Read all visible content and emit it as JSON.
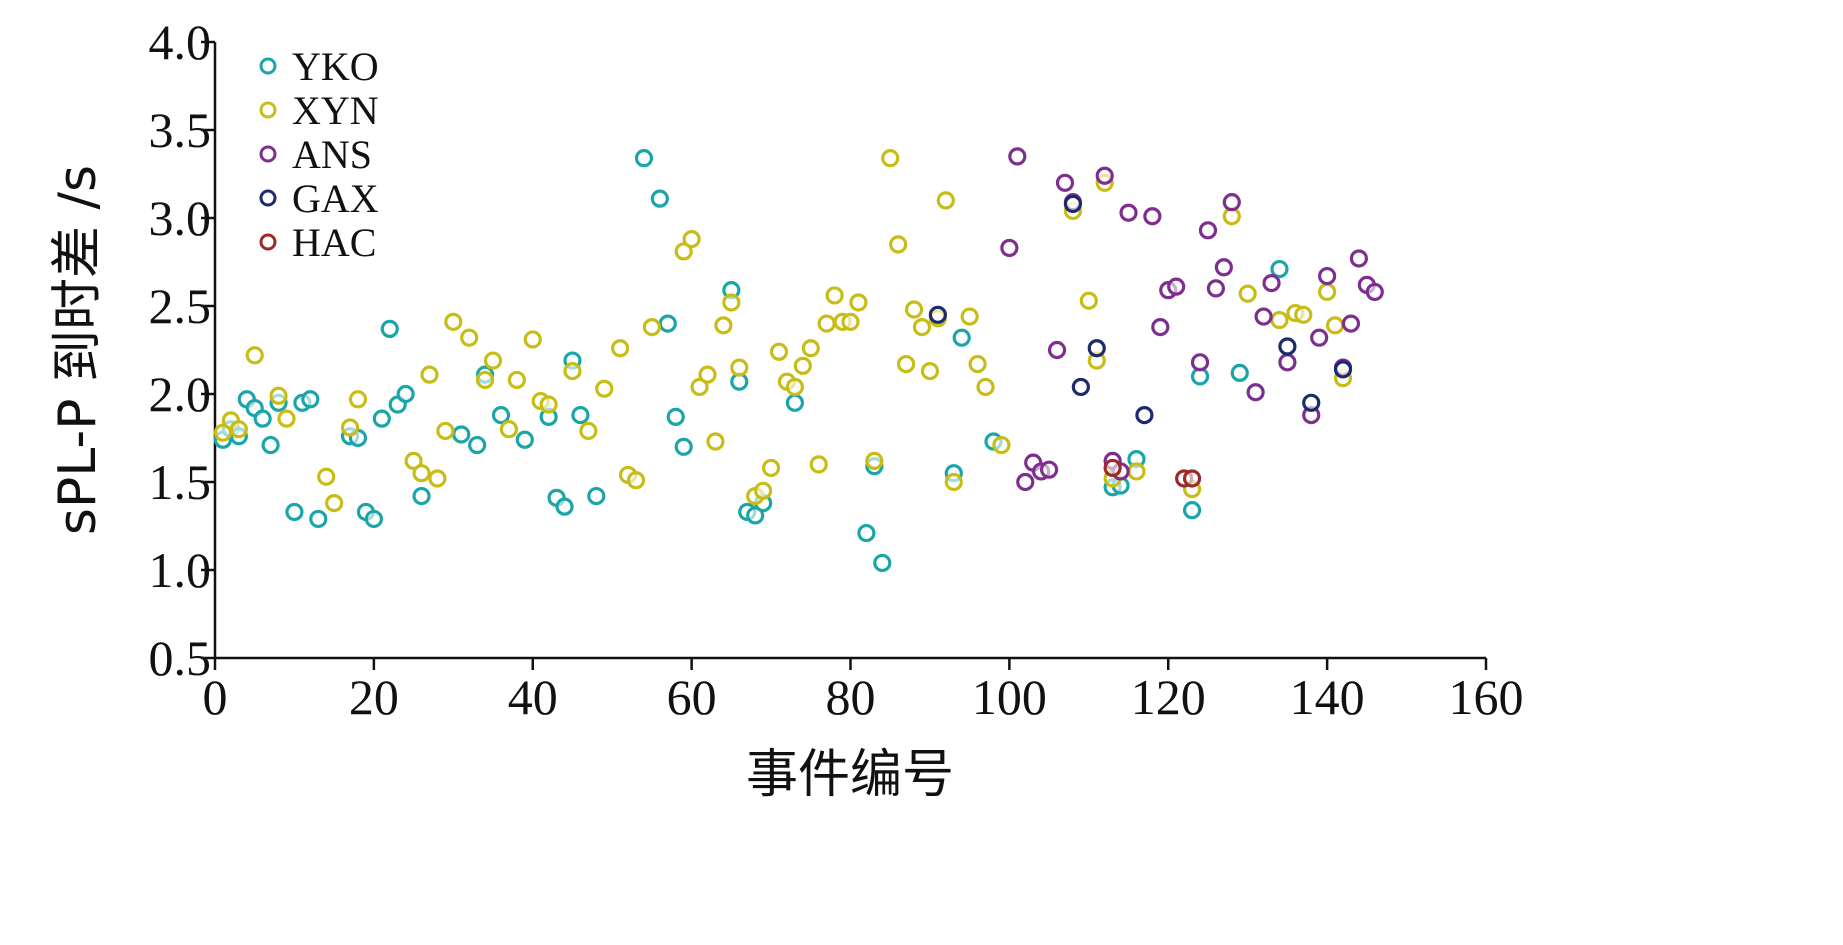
{
  "chart_data": {
    "type": "scatter",
    "xlabel": "事件编号",
    "ylabel": "sPL-P 到时差 /s",
    "xlim": [
      0,
      160
    ],
    "ylim": [
      0.5,
      4.0
    ],
    "x_ticks": [
      "0",
      "20",
      "40",
      "60",
      "80",
      "100",
      "120",
      "140",
      "160"
    ],
    "y_ticks": [
      "0.5",
      "1.0",
      "1.5",
      "2.0",
      "2.5",
      "3.0",
      "3.5",
      "4.0"
    ],
    "grid": false,
    "legend_position": "top-left",
    "series": [
      {
        "name": "YKO",
        "color": "#1aa6a8",
        "points": [
          [
            1,
            1.74
          ],
          [
            2,
            1.8
          ],
          [
            3,
            1.76
          ],
          [
            4,
            1.97
          ],
          [
            5,
            1.92
          ],
          [
            6,
            1.86
          ],
          [
            7,
            1.71
          ],
          [
            8,
            1.95
          ],
          [
            10,
            1.33
          ],
          [
            11,
            1.95
          ],
          [
            12,
            1.97
          ],
          [
            13,
            1.29
          ],
          [
            17,
            1.76
          ],
          [
            18,
            1.75
          ],
          [
            19,
            1.33
          ],
          [
            20,
            1.29
          ],
          [
            21,
            1.86
          ],
          [
            22,
            2.37
          ],
          [
            23,
            1.94
          ],
          [
            24,
            2.0
          ],
          [
            26,
            1.42
          ],
          [
            31,
            1.77
          ],
          [
            33,
            1.71
          ],
          [
            34,
            2.11
          ],
          [
            36,
            1.88
          ],
          [
            39,
            1.74
          ],
          [
            42,
            1.87
          ],
          [
            43,
            1.41
          ],
          [
            44,
            1.36
          ],
          [
            45,
            2.19
          ],
          [
            46,
            1.88
          ],
          [
            48,
            1.42
          ],
          [
            54,
            3.34
          ],
          [
            56,
            3.11
          ],
          [
            57,
            2.4
          ],
          [
            58,
            1.87
          ],
          [
            59,
            1.7
          ],
          [
            65,
            2.59
          ],
          [
            66,
            2.07
          ],
          [
            67,
            1.33
          ],
          [
            68,
            1.31
          ],
          [
            69,
            1.38
          ],
          [
            73,
            1.95
          ],
          [
            82,
            1.21
          ],
          [
            83,
            1.59
          ],
          [
            84,
            1.04
          ],
          [
            93,
            1.55
          ],
          [
            94,
            2.32
          ],
          [
            98,
            1.73
          ],
          [
            113,
            1.47
          ],
          [
            114,
            1.48
          ],
          [
            116,
            1.63
          ],
          [
            123,
            1.34
          ],
          [
            124,
            2.1
          ],
          [
            129,
            2.12
          ],
          [
            134,
            2.71
          ]
        ]
      },
      {
        "name": "XYN",
        "color": "#c8bd16",
        "points": [
          [
            1,
            1.78
          ],
          [
            2,
            1.85
          ],
          [
            3,
            1.8
          ],
          [
            5,
            2.22
          ],
          [
            8,
            1.99
          ],
          [
            9,
            1.86
          ],
          [
            14,
            1.53
          ],
          [
            15,
            1.38
          ],
          [
            17,
            1.81
          ],
          [
            18,
            1.97
          ],
          [
            25,
            1.62
          ],
          [
            26,
            1.55
          ],
          [
            27,
            2.11
          ],
          [
            28,
            1.52
          ],
          [
            29,
            1.79
          ],
          [
            30,
            2.41
          ],
          [
            32,
            2.32
          ],
          [
            34,
            2.08
          ],
          [
            35,
            2.19
          ],
          [
            37,
            1.8
          ],
          [
            38,
            2.08
          ],
          [
            40,
            2.31
          ],
          [
            41,
            1.96
          ],
          [
            42,
            1.94
          ],
          [
            45,
            2.13
          ],
          [
            47,
            1.79
          ],
          [
            49,
            2.03
          ],
          [
            51,
            2.26
          ],
          [
            52,
            1.54
          ],
          [
            53,
            1.51
          ],
          [
            55,
            2.38
          ],
          [
            59,
            2.81
          ],
          [
            60,
            2.88
          ],
          [
            61,
            2.04
          ],
          [
            62,
            2.11
          ],
          [
            63,
            1.73
          ],
          [
            64,
            2.39
          ],
          [
            65,
            2.52
          ],
          [
            66,
            2.15
          ],
          [
            68,
            1.42
          ],
          [
            69,
            1.45
          ],
          [
            70,
            1.58
          ],
          [
            71,
            2.24
          ],
          [
            72,
            2.07
          ],
          [
            73,
            2.04
          ],
          [
            74,
            2.16
          ],
          [
            75,
            2.26
          ],
          [
            76,
            1.6
          ],
          [
            77,
            2.4
          ],
          [
            78,
            2.56
          ],
          [
            79,
            2.41
          ],
          [
            80,
            2.41
          ],
          [
            81,
            2.52
          ],
          [
            83,
            1.62
          ],
          [
            85,
            3.34
          ],
          [
            86,
            2.85
          ],
          [
            87,
            2.17
          ],
          [
            88,
            2.48
          ],
          [
            89,
            2.38
          ],
          [
            90,
            2.13
          ],
          [
            91,
            2.43
          ],
          [
            92,
            3.1
          ],
          [
            93,
            1.5
          ],
          [
            95,
            2.44
          ],
          [
            96,
            2.17
          ],
          [
            97,
            2.04
          ],
          [
            99,
            1.71
          ],
          [
            108,
            3.04
          ],
          [
            110,
            2.53
          ],
          [
            111,
            2.19
          ],
          [
            112,
            3.2
          ],
          [
            113,
            1.52
          ],
          [
            116,
            1.56
          ],
          [
            123,
            1.46
          ],
          [
            128,
            3.01
          ],
          [
            130,
            2.57
          ],
          [
            134,
            2.42
          ],
          [
            136,
            2.46
          ],
          [
            137,
            2.45
          ],
          [
            140,
            2.58
          ],
          [
            141,
            2.39
          ],
          [
            142,
            2.09
          ]
        ]
      },
      {
        "name": "ANS",
        "color": "#7e2e8e",
        "points": [
          [
            100,
            2.83
          ],
          [
            101,
            3.35
          ],
          [
            102,
            1.5
          ],
          [
            103,
            1.61
          ],
          [
            104,
            1.56
          ],
          [
            105,
            1.57
          ],
          [
            106,
            2.25
          ],
          [
            107,
            3.2
          ],
          [
            108,
            3.09
          ],
          [
            112,
            3.24
          ],
          [
            113,
            1.62
          ],
          [
            114,
            1.56
          ],
          [
            115,
            3.03
          ],
          [
            118,
            3.01
          ],
          [
            119,
            2.38
          ],
          [
            120,
            2.59
          ],
          [
            121,
            2.61
          ],
          [
            124,
            2.18
          ],
          [
            125,
            2.93
          ],
          [
            126,
            2.6
          ],
          [
            127,
            2.72
          ],
          [
            128,
            3.09
          ],
          [
            131,
            2.01
          ],
          [
            132,
            2.44
          ],
          [
            133,
            2.63
          ],
          [
            135,
            2.18
          ],
          [
            138,
            1.88
          ],
          [
            139,
            2.32
          ],
          [
            140,
            2.67
          ],
          [
            142,
            2.15
          ],
          [
            143,
            2.4
          ],
          [
            144,
            2.77
          ],
          [
            145,
            2.62
          ],
          [
            146,
            2.58
          ]
        ]
      },
      {
        "name": "GAX",
        "color": "#1c2a6e",
        "points": [
          [
            91,
            2.45
          ],
          [
            108,
            3.08
          ],
          [
            109,
            2.04
          ],
          [
            111,
            2.26
          ],
          [
            117,
            1.88
          ],
          [
            135,
            2.27
          ],
          [
            138,
            1.95
          ],
          [
            142,
            2.14
          ]
        ]
      },
      {
        "name": "HAC",
        "color": "#9c2a2a",
        "points": [
          [
            122,
            1.52
          ],
          [
            123,
            1.52
          ],
          [
            113,
            1.58
          ]
        ]
      }
    ]
  }
}
